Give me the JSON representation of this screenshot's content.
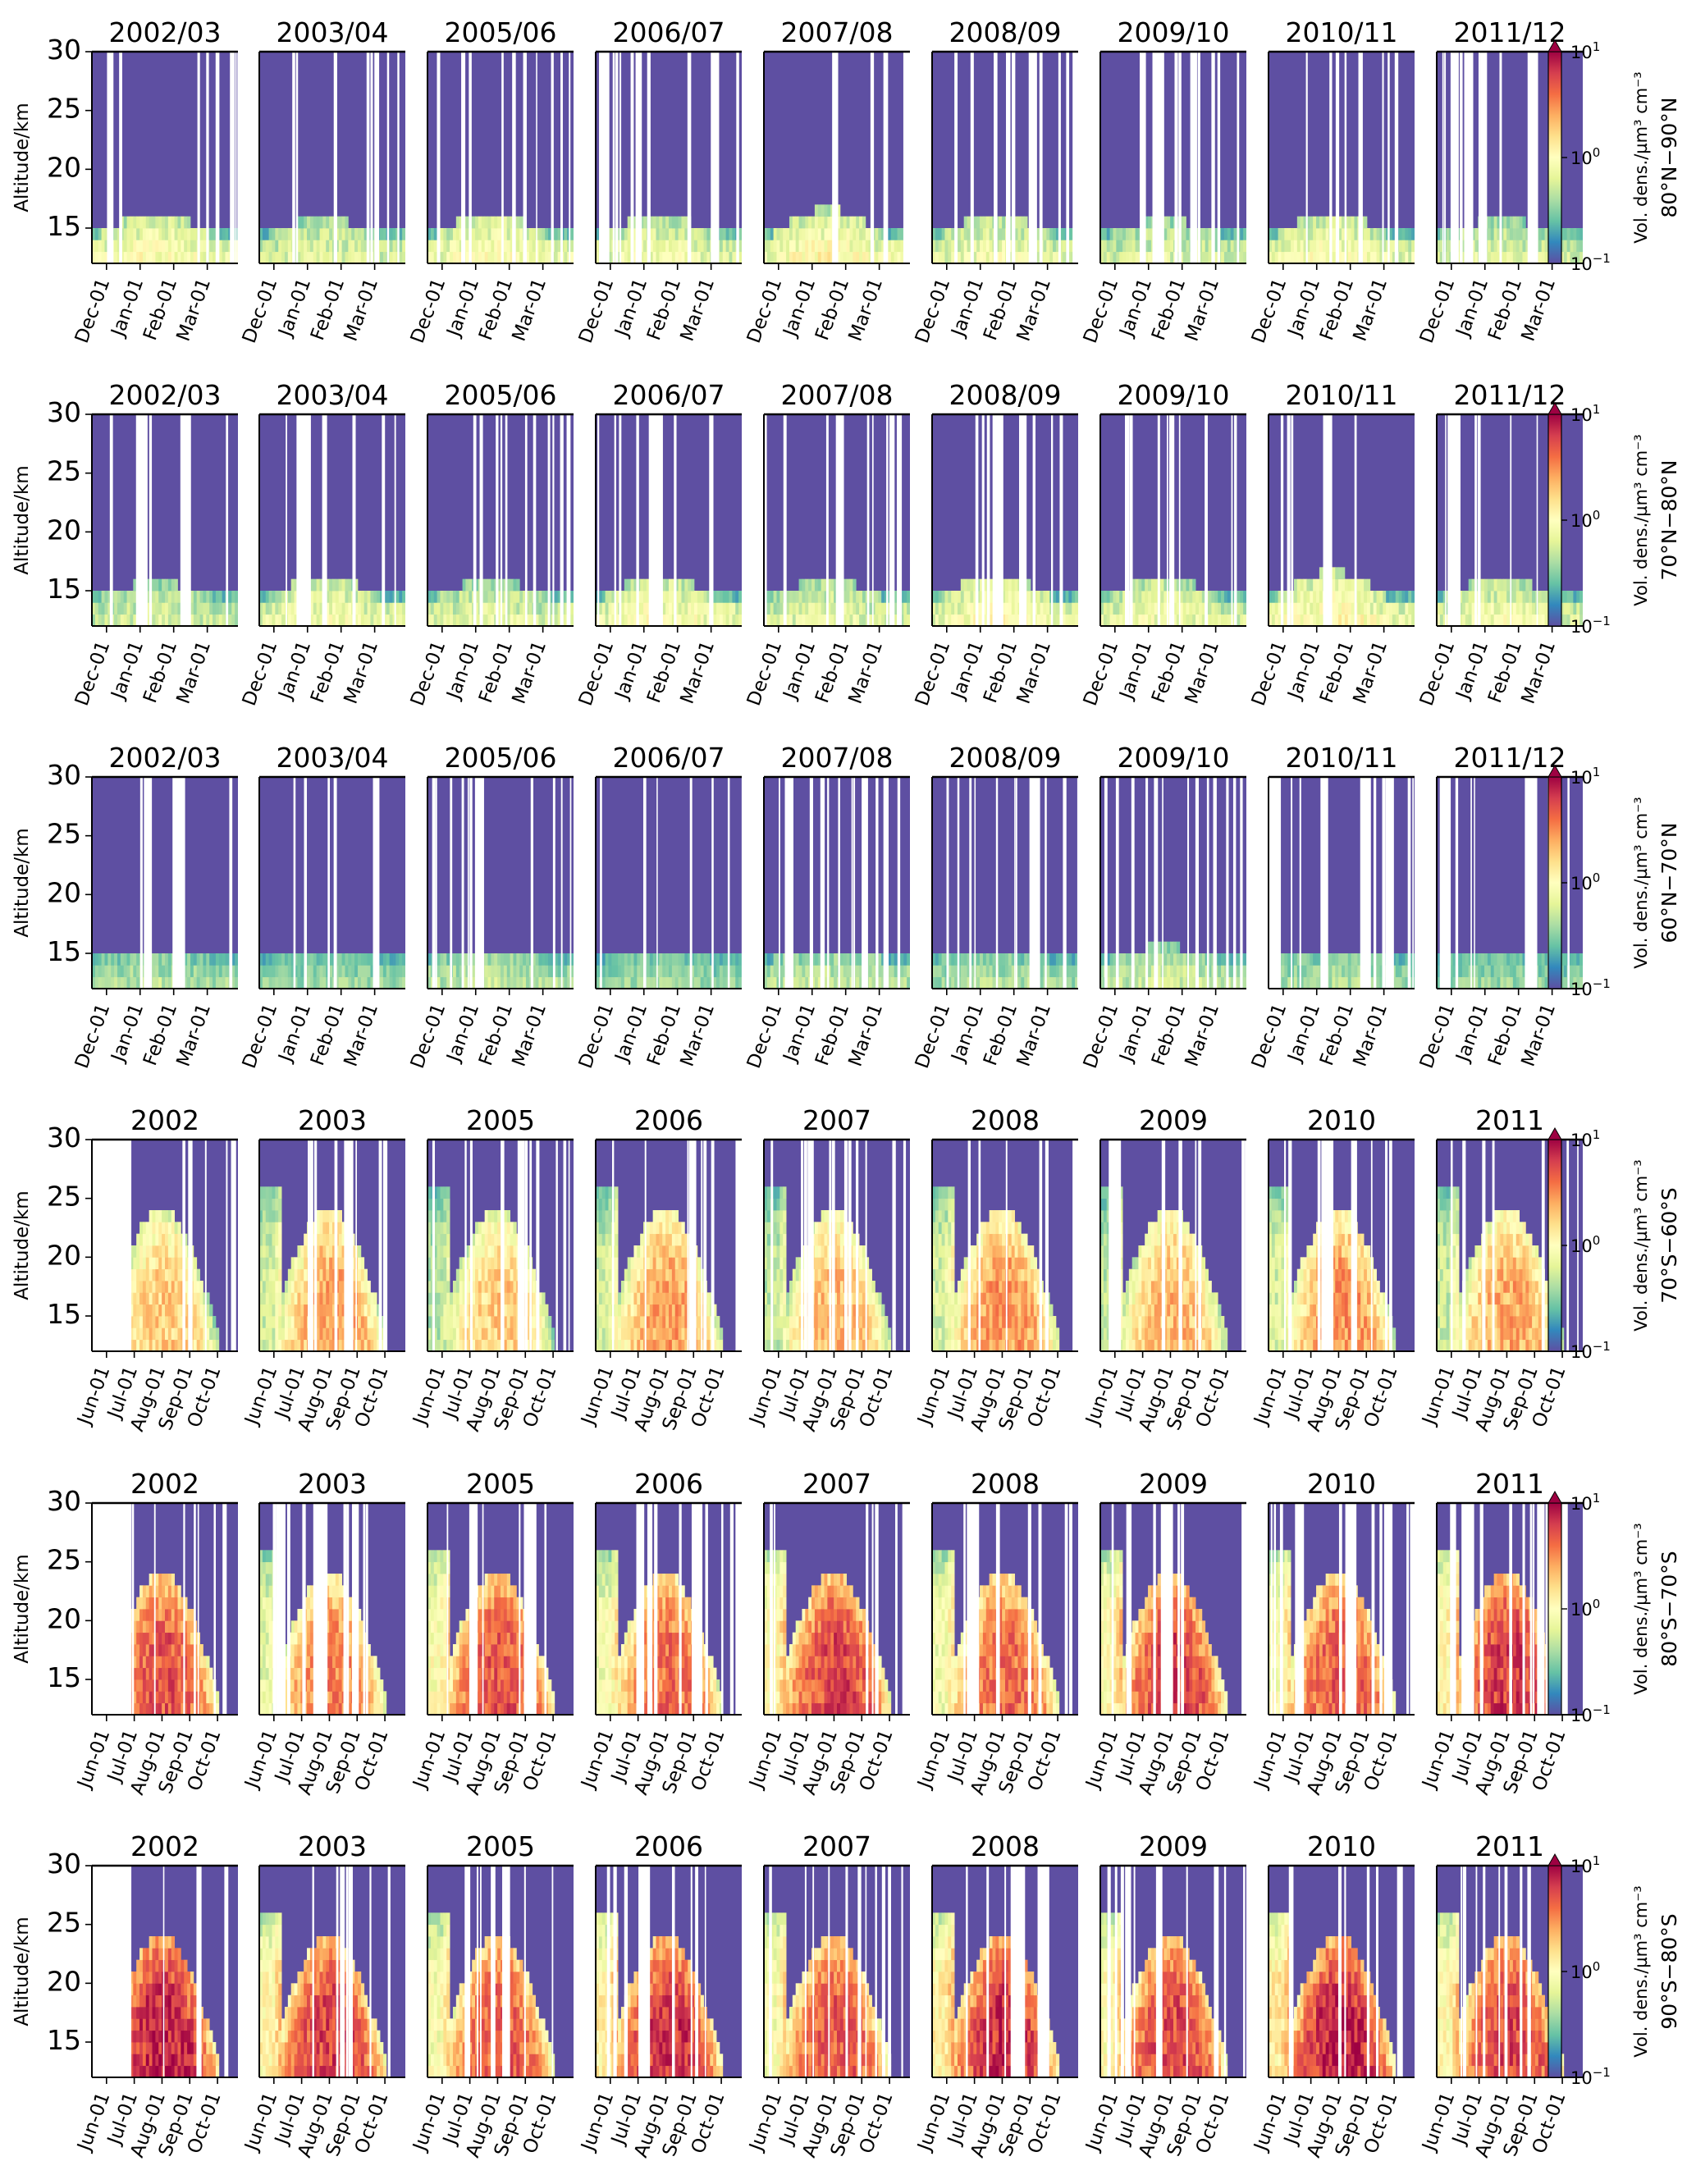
{
  "chart_data": {
    "type": "heatmap",
    "ylabel": "Altitude/km",
    "ylim": [
      12,
      30
    ],
    "yticks": [
      15,
      20,
      25,
      30
    ],
    "colorbar": {
      "label": "Vol. dens./µm³ cm⁻³",
      "scale": "log",
      "range": [
        0.1,
        10
      ],
      "ticks": [
        {
          "base": "10",
          "exp": "1"
        },
        {
          "base": "10",
          "exp": "0"
        },
        {
          "base": "10",
          "exp": "−1"
        }
      ],
      "colormap": [
        "#5e4fa2",
        "#3288bd",
        "#66c2a5",
        "#abdda4",
        "#e6f598",
        "#ffffbf",
        "#fee08b",
        "#fdae61",
        "#f46d43",
        "#d53e4f",
        "#9e0142"
      ]
    },
    "rows": [
      {
        "region": "80°N−90°N",
        "hemisphere": "north",
        "intensity": 0.3,
        "seasons": [
          "2002/03",
          "2003/04",
          "2005/06",
          "2006/07",
          "2007/08",
          "2008/09",
          "2009/10",
          "2010/11",
          "2011/12"
        ],
        "xticks": [
          "Dec-01",
          "Jan-01",
          "Feb-01",
          "Mar-01"
        ]
      },
      {
        "region": "70°N−80°N",
        "hemisphere": "north",
        "intensity": 0.28,
        "seasons": [
          "2002/03",
          "2003/04",
          "2005/06",
          "2006/07",
          "2007/08",
          "2008/09",
          "2009/10",
          "2010/11",
          "2011/12"
        ],
        "xticks": [
          "Dec-01",
          "Jan-01",
          "Feb-01",
          "Mar-01"
        ]
      },
      {
        "region": "60°N−70°N",
        "hemisphere": "north",
        "intensity": 0.15,
        "seasons": [
          "2002/03",
          "2003/04",
          "2005/06",
          "2006/07",
          "2007/08",
          "2008/09",
          "2009/10",
          "2010/11",
          "2011/12"
        ],
        "xticks": [
          "Dec-01",
          "Jan-01",
          "Feb-01",
          "Mar-01"
        ]
      },
      {
        "region": "70°S−60°S",
        "hemisphere": "south",
        "intensity": 0.35,
        "seasons": [
          "2002",
          "2003",
          "2005",
          "2006",
          "2007",
          "2008",
          "2009",
          "2010",
          "2011"
        ],
        "xticks": [
          "Jun-01",
          "Jul-01",
          "Aug-01",
          "Sep-01",
          "Oct-01"
        ]
      },
      {
        "region": "80°S−70°S",
        "hemisphere": "south",
        "intensity": 0.72,
        "seasons": [
          "2002",
          "2003",
          "2005",
          "2006",
          "2007",
          "2008",
          "2009",
          "2010",
          "2011"
        ],
        "xticks": [
          "Jun-01",
          "Jul-01",
          "Aug-01",
          "Sep-01",
          "Oct-01"
        ]
      },
      {
        "region": "90°S−80°S",
        "hemisphere": "south",
        "intensity": 0.88,
        "seasons": [
          "2002",
          "2003",
          "2005",
          "2006",
          "2007",
          "2008",
          "2009",
          "2010",
          "2011"
        ],
        "xticks": [
          "Jun-01",
          "Jul-01",
          "Aug-01",
          "Sep-01",
          "Oct-01"
        ]
      }
    ]
  }
}
